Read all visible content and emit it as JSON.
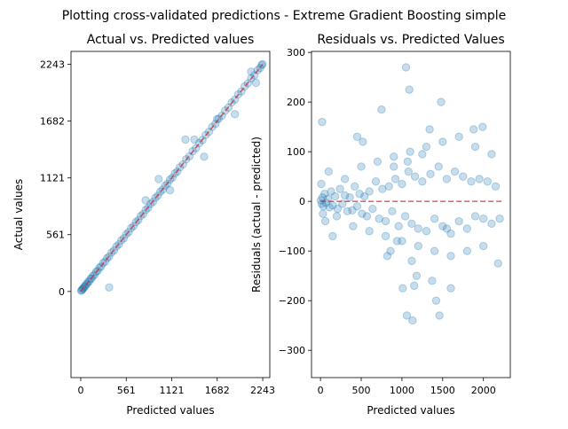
{
  "figure": {
    "suptitle": "Plotting cross-validated predictions - Extreme Gradient Boosting simple"
  },
  "style": {
    "point_color": "#1f77b4",
    "line_color": "#d62728"
  },
  "chart_data": [
    {
      "type": "scatter",
      "title": "Actual vs. Predicted values",
      "xlabel": "Predicted values",
      "ylabel": "Actual values",
      "xlim": [
        -120,
        2330
      ],
      "ylim": [
        -850,
        2370
      ],
      "xticks": [
        0,
        561,
        1121,
        1682,
        2243
      ],
      "yticks": [
        0,
        561,
        1121,
        1682,
        2243
      ],
      "grid": false,
      "legend": "none",
      "reference_line": {
        "style": "dashed",
        "from": [
          0,
          0
        ],
        "to": [
          2243,
          2243
        ]
      },
      "series": [
        {
          "x": [
            5,
            12,
            20,
            28,
            35,
            45,
            55,
            65,
            78,
            90,
            105,
            120,
            135,
            150,
            170,
            190,
            210,
            230,
            250,
            275,
            300,
            325,
            350,
            380,
            410,
            440,
            470,
            500,
            530,
            560,
            590,
            620,
            650,
            680,
            710,
            740,
            770,
            800,
            830,
            860,
            890,
            920,
            950,
            980,
            1010,
            1040,
            1070,
            1100,
            1130,
            1160,
            1190,
            1220,
            1260,
            1300,
            1340,
            1380,
            1420,
            1460,
            1500,
            1540,
            1580,
            1620,
            1660,
            1700,
            1740,
            1780,
            1820,
            1860,
            1900,
            1940,
            1980,
            2020,
            2060,
            2100,
            2140,
            2180,
            2210,
            2230,
            2240,
            350,
            960,
            1290,
            1520,
            1680,
            1900,
            2100,
            2160,
            1100,
            800,
            1400
          ],
          "y": [
            8,
            10,
            22,
            30,
            33,
            48,
            52,
            68,
            75,
            95,
            100,
            125,
            130,
            155,
            165,
            195,
            205,
            235,
            245,
            280,
            295,
            330,
            345,
            385,
            405,
            445,
            465,
            505,
            525,
            565,
            585,
            625,
            645,
            685,
            705,
            745,
            765,
            805,
            825,
            865,
            885,
            925,
            945,
            985,
            1005,
            1045,
            1065,
            1105,
            1125,
            1165,
            1185,
            1225,
            1255,
            1305,
            1335,
            1385,
            1415,
            1465,
            1495,
            1545,
            1575,
            1625,
            1655,
            1705,
            1735,
            1785,
            1815,
            1865,
            1895,
            1945,
            1975,
            2025,
            2055,
            2105,
            2135,
            2185,
            2205,
            2235,
            2245,
            40,
            1110,
            1500,
            1330,
            1700,
            1750,
            2170,
            2060,
            1000,
            900,
            1500
          ]
        }
      ]
    },
    {
      "type": "scatter",
      "title": "Residuals vs. Predicted Values",
      "xlabel": "Predicted values",
      "ylabel": "Residuals (actual - predicted)",
      "xlim": [
        -110,
        2330
      ],
      "ylim": [
        -355,
        302
      ],
      "xticks": [
        0,
        500,
        1000,
        1500,
        2000
      ],
      "yticks": [
        -300,
        -200,
        -100,
        0,
        100,
        200,
        300
      ],
      "grid": false,
      "legend": "none",
      "reference_line": {
        "style": "dashed",
        "y": 0,
        "from_x": 0,
        "to_x": 2243
      },
      "series": [
        {
          "x": [
            5,
            15,
            25,
            35,
            50,
            70,
            90,
            110,
            130,
            150,
            180,
            210,
            240,
            270,
            300,
            330,
            360,
            390,
            420,
            450,
            480,
            510,
            540,
            570,
            600,
            640,
            680,
            720,
            760,
            800,
            840,
            880,
            920,
            960,
            1000,
            1040,
            1080,
            1120,
            1160,
            1200,
            1250,
            1300,
            1350,
            1400,
            1450,
            1500,
            1550,
            1600,
            1650,
            1700,
            1750,
            1800,
            1850,
            1900,
            1950,
            2000,
            2050,
            2100,
            2150,
            2200,
            10,
            30,
            60,
            100,
            200,
            300,
            400,
            500,
            600,
            700,
            800,
            900,
            1000,
            1100,
            1200,
            1300,
            1400,
            1500,
            1600,
            1700,
            1800,
            1900,
            2000,
            2100,
            20,
            150,
            450,
            520,
            750,
            820,
            900,
            1010,
            1050,
            1120,
            1180,
            1250,
            1370,
            1420,
            1460,
            1600,
            1880,
            1990,
            2180,
            1060,
            1090,
            1130,
            1340,
            860,
            940,
            1480,
            1550,
            1070,
            1150
          ],
          "y": [
            2,
            -5,
            8,
            -10,
            15,
            -3,
            5,
            -12,
            20,
            -8,
            10,
            -15,
            25,
            -5,
            12,
            -20,
            8,
            -18,
            30,
            -10,
            15,
            -25,
            10,
            -30,
            20,
            -15,
            40,
            -35,
            25,
            -40,
            30,
            -20,
            45,
            -50,
            35,
            -30,
            60,
            -45,
            50,
            -55,
            40,
            -60,
            55,
            -35,
            70,
            -50,
            45,
            -65,
            60,
            -40,
            50,
            -55,
            40,
            -30,
            45,
            -35,
            40,
            -45,
            30,
            -35,
            35,
            -25,
            -40,
            60,
            -30,
            45,
            -50,
            70,
            -60,
            80,
            -70,
            90,
            -80,
            100,
            -90,
            110,
            -100,
            120,
            -110,
            130,
            -100,
            110,
            -90,
            95,
            160,
            -70,
            130,
            120,
            185,
            -110,
            70,
            -175,
            270,
            -120,
            -150,
            95,
            -160,
            -200,
            -230,
            -175,
            145,
            150,
            -125,
            -230,
            225,
            -240,
            145,
            -100,
            -80,
            200,
            -55,
            80,
            -170
          ]
        }
      ]
    }
  ]
}
